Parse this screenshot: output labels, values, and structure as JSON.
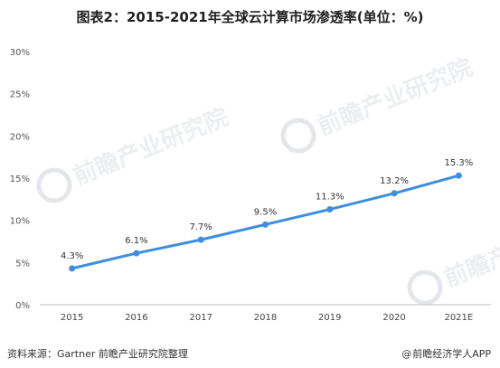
{
  "chart_data": {
    "type": "line",
    "title": "图表2：2015-2021年全球云计算市场渗透率(单位：%)",
    "categories": [
      "2015",
      "2016",
      "2017",
      "2018",
      "2019",
      "2020",
      "2021E"
    ],
    "series": [
      {
        "values": [
          4.3,
          6.1,
          7.7,
          9.5,
          11.3,
          13.2,
          15.3
        ],
        "labels": [
          "4.3%",
          "6.1%",
          "7.7%",
          "9.5%",
          "11.3%",
          "13.2%",
          "15.3%"
        ]
      }
    ],
    "ylim": [
      0,
      30
    ],
    "yticks": [
      0,
      5,
      10,
      15,
      20,
      25,
      30
    ],
    "ytick_labels": [
      "0%",
      "5%",
      "10%",
      "15%",
      "20%",
      "25%",
      "30%"
    ],
    "xlabel": "",
    "ylabel": "",
    "grid": false,
    "legend": "none",
    "line_color": "#3b8ee2"
  },
  "footer": {
    "source": "资料来源：Gartner 前瞻产业研究院整理",
    "brand_symbol": "@",
    "brand_text": "前瞻经济学人APP"
  },
  "watermark": {
    "text": "前瞻产业研究院"
  }
}
